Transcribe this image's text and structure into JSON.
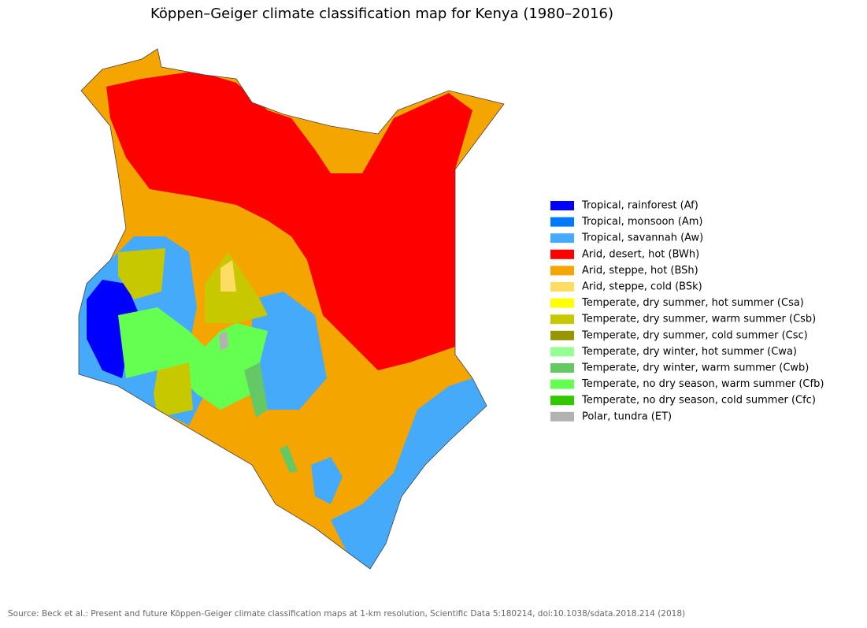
{
  "map": {
    "title": "Köppen–Geiger climate classification map for Kenya (1980–2016)",
    "legend": [
      {
        "label": "Tropical, rainforest (Af)",
        "color": "#0000ff"
      },
      {
        "label": "Tropical, monsoon (Am)",
        "color": "#0078ff"
      },
      {
        "label": "Tropical, savannah (Aw)",
        "color": "#46aafa"
      },
      {
        "label": "Arid, desert, hot (BWh)",
        "color": "#ff0000"
      },
      {
        "label": "Arid, steppe, hot (BSh)",
        "color": "#f5a500"
      },
      {
        "label": "Arid, steppe, cold (BSk)",
        "color": "#ffdc64"
      },
      {
        "label": "Temperate, dry summer, hot summer (Csa)",
        "color": "#ffff00"
      },
      {
        "label": "Temperate, dry summer, warm summer (Csb)",
        "color": "#c8c800"
      },
      {
        "label": "Temperate, dry summer, cold summer (Csc)",
        "color": "#969600"
      },
      {
        "label": "Temperate, dry winter, hot summer (Cwa)",
        "color": "#96ff96"
      },
      {
        "label": "Temperate, dry winter, warm summer (Cwb)",
        "color": "#64c864"
      },
      {
        "label": "Temperate, no dry season, warm summer (Cfb)",
        "color": "#64ff50"
      },
      {
        "label": "Temperate, no dry season, cold summer (Cfc)",
        "color": "#32c800"
      },
      {
        "label": "Polar, tundra (ET)",
        "color": "#b2b2b2"
      }
    ],
    "source": "Source: Beck et al.: Present and future Köppen-Geiger climate classification maps at 1-km resolution, Scientific Data 5:180214, doi:10.1038/sdata.2018.214 (2018)"
  }
}
